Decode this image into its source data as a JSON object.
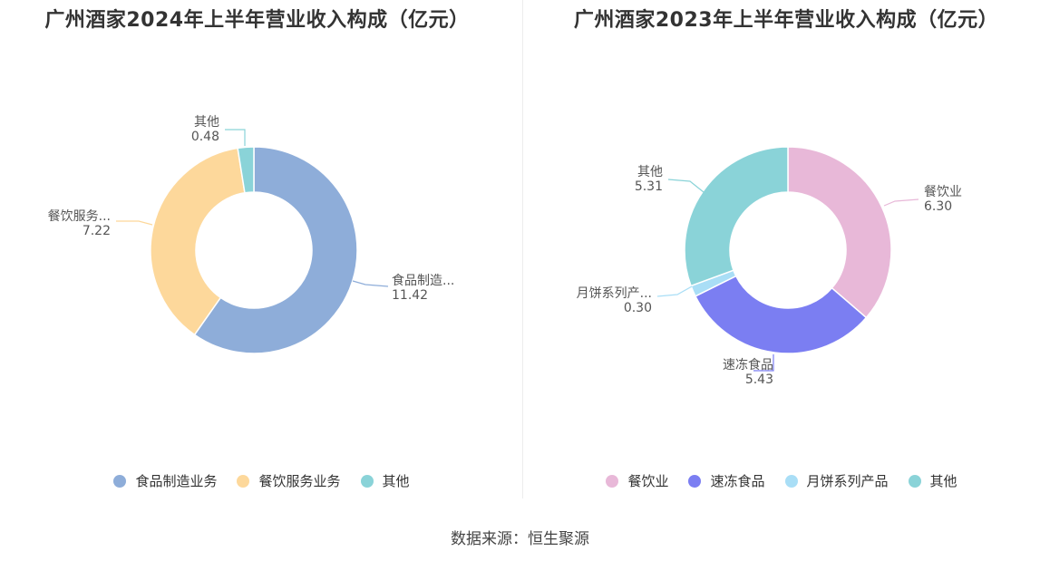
{
  "chart_data": [
    {
      "type": "pie",
      "title": "广州酒家2024年上半年营业收入构成（亿元）",
      "categories": [
        "食品制造业务",
        "餐饮服务业务",
        "其他"
      ],
      "values": [
        11.42,
        7.22,
        0.48
      ],
      "label_names": [
        "食品制造...",
        "餐饮服务...",
        "其他"
      ],
      "value_labels": [
        "11.42",
        "7.22",
        "0.48"
      ],
      "colors": [
        "#8eadd9",
        "#fdd89b",
        "#8ad3d8"
      ],
      "legend": "bottom"
    },
    {
      "type": "pie",
      "title": "广州酒家2023年上半年营业收入构成（亿元）",
      "categories": [
        "餐饮业",
        "速冻食品",
        "月饼系列产品",
        "其他"
      ],
      "values": [
        6.3,
        5.43,
        0.3,
        5.31
      ],
      "label_names": [
        "餐饮业",
        "速冻食品",
        "月饼系列产...",
        "其他"
      ],
      "value_labels": [
        "6.30",
        "5.43",
        "0.30",
        "5.31"
      ],
      "colors": [
        "#e8b8d8",
        "#7b7ef2",
        "#a9def6",
        "#8ad3d8"
      ],
      "legend": "bottom"
    }
  ],
  "source": "数据来源：恒生聚源"
}
